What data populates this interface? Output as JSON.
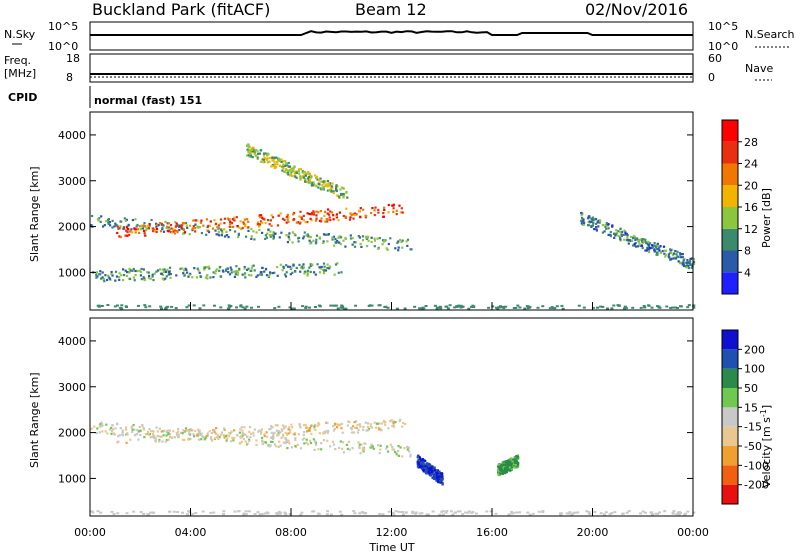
{
  "header": {
    "title": "Buckland Park (fitACF)",
    "beam": "Beam 12",
    "date": "02/Nov/2016"
  },
  "noise_panel": {
    "left_label": "N.Sky",
    "right_label": "N.Search",
    "left_ticks": [
      "10^5",
      "10^0"
    ],
    "right_ticks": [
      "10^5",
      "10^0"
    ]
  },
  "freq_panel": {
    "left_label_1": "Freq.",
    "left_label_2": "[MHz]",
    "right_label": "Nave",
    "left_ticks": [
      "18",
      "8"
    ],
    "right_ticks": [
      "60",
      "0"
    ]
  },
  "cpid": {
    "label": "CPID",
    "value": "normal (fast) 151"
  },
  "chart_data": [
    {
      "type": "heatmap",
      "parameter": "Power",
      "ylabel": "Slant Range [km]",
      "ylim": [
        180,
        4500
      ],
      "yticks": [
        "1000",
        "2000",
        "3000",
        "4000"
      ],
      "colorbar": {
        "label": "Power [dB]",
        "ticks": [
          "4",
          "8",
          "12",
          "16",
          "20",
          "24",
          "28"
        ],
        "range": [
          0,
          32
        ]
      },
      "colors": [
        "#1f1fff",
        "#2a5aa8",
        "#3c8a6e",
        "#8cc63f",
        "#f2b400",
        "#f07800",
        "#e83010",
        "#ff0000"
      ],
      "features": [
        {
          "t_start": 0.0,
          "t_end": 12.8,
          "range_start": 2150,
          "range_end": 1600,
          "power": 10
        },
        {
          "t_start": 1.0,
          "t_end": 12.5,
          "range_start": 1900,
          "range_end": 2400,
          "power": 24
        },
        {
          "t_start": 0.0,
          "t_end": 10.0,
          "range_start": 950,
          "range_end": 1100,
          "power": 10
        },
        {
          "t_start": 6.2,
          "t_end": 10.2,
          "range_start": 3700,
          "range_end": 2700,
          "power": 14
        },
        {
          "t_start": 19.5,
          "t_end": 24.0,
          "range_start": 2200,
          "range_end": 1200,
          "power": 9
        }
      ]
    },
    {
      "type": "heatmap",
      "parameter": "Velocity",
      "ylabel": "Slant Range [km]",
      "ylim": [
        180,
        4500
      ],
      "yticks": [
        "1000",
        "2000",
        "3000",
        "4000"
      ],
      "colorbar": {
        "label": "Velocity [m s^-1]",
        "ticks": [
          "-200",
          "-100",
          "-50",
          "-15",
          "15",
          "50",
          "100",
          "200"
        ],
        "range": [
          -250,
          250
        ]
      },
      "colors": [
        "#e81010",
        "#f06010",
        "#f0a030",
        "#e8c890",
        "#c8c8c8",
        "#70c850",
        "#2a8a4a",
        "#2050b0",
        "#1010d0"
      ],
      "features": [
        {
          "t_start": 0.0,
          "t_end": 12.8,
          "range_start": 2150,
          "range_end": 1600,
          "velocity": 0
        },
        {
          "t_start": 1.0,
          "t_end": 12.5,
          "range_start": 1900,
          "range_end": 2200,
          "velocity": -20
        },
        {
          "t_start": 13.0,
          "t_end": 14.0,
          "range_start": 1400,
          "range_end": 1000,
          "velocity": 200
        },
        {
          "t_start": 16.2,
          "t_end": 17.0,
          "range_start": 1200,
          "range_end": 1400,
          "velocity": 60
        }
      ]
    }
  ],
  "time_axis": {
    "label": "Time UT",
    "ticks": [
      "00:00",
      "04:00",
      "08:00",
      "12:00",
      "16:00",
      "20:00",
      "00:00"
    ],
    "range_hours": [
      0,
      24
    ]
  },
  "colorbar_ticks_power": [
    "4",
    "8",
    "12",
    "16",
    "20",
    "24",
    "28"
  ]
}
